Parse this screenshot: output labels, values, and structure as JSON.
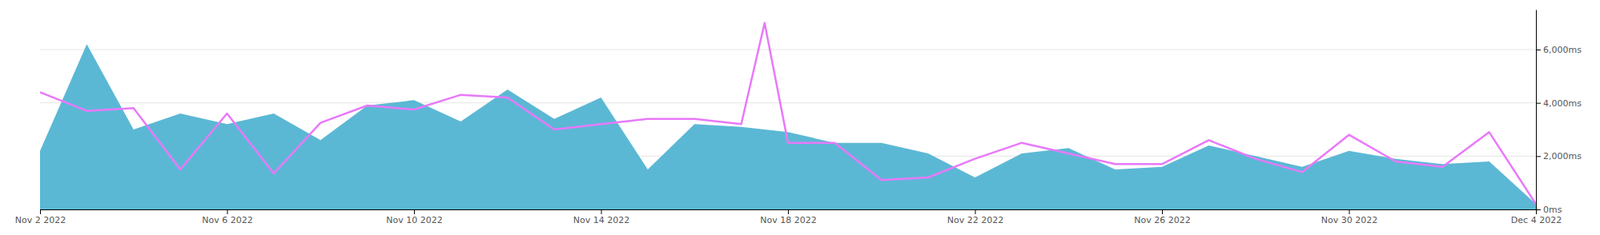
{
  "chart_data": {
    "type": "line",
    "xlim": [
      0,
      32
    ],
    "xticks": [
      {
        "value": 0,
        "label": "Nov 2 2022"
      },
      {
        "value": 4,
        "label": "Nov 6 2022"
      },
      {
        "value": 8,
        "label": "Nov 10 2022"
      },
      {
        "value": 12,
        "label": "Nov 14 2022"
      },
      {
        "value": 16,
        "label": "Nov 18 2022"
      },
      {
        "value": 20,
        "label": "Nov 22 2022"
      },
      {
        "value": 24,
        "label": "Nov 26 2022"
      },
      {
        "value": 28,
        "label": "Nov 30 2022"
      },
      {
        "value": 32,
        "label": "Dec 4 2022"
      }
    ],
    "ylim": [
      0,
      7500
    ],
    "yticks": [
      {
        "value": 0,
        "label": "0ms"
      },
      {
        "value": 2000,
        "label": "2,000ms"
      },
      {
        "value": 4000,
        "label": "4,000ms"
      },
      {
        "value": 6000,
        "label": "6,000ms"
      }
    ],
    "grid": "y",
    "series": [
      {
        "type": "area",
        "color": "#5bb8d4",
        "x": [
          0,
          1,
          2,
          3,
          4,
          5,
          6,
          7,
          8,
          9,
          10,
          11,
          12,
          13,
          14,
          15,
          16,
          17,
          18,
          19,
          20,
          21,
          22,
          23,
          24,
          25,
          26,
          27,
          28,
          29,
          30,
          31,
          32
        ],
        "values": [
          2200,
          6200,
          3000,
          3600,
          3200,
          3600,
          2600,
          3900,
          4100,
          3300,
          4500,
          3400,
          4200,
          1500,
          3200,
          3100,
          2900,
          2500,
          2500,
          2100,
          1200,
          2100,
          2300,
          1500,
          1600,
          2400,
          2000,
          1600,
          2200,
          1900,
          1700,
          1800,
          200
        ]
      },
      {
        "type": "line",
        "color": "#e879f9",
        "x": [
          0,
          1,
          2,
          3,
          4,
          5,
          6,
          7,
          8,
          9,
          10,
          11,
          12,
          13,
          14,
          15,
          15.5,
          16,
          17,
          18,
          19,
          20,
          21,
          22,
          23,
          24,
          25,
          26,
          27,
          28,
          29,
          30,
          31,
          32
        ],
        "values": [
          4400,
          3700,
          3800,
          1500,
          3600,
          1350,
          3250,
          3900,
          3750,
          4300,
          4200,
          3000,
          3200,
          3400,
          3400,
          3200,
          7000,
          2500,
          2500,
          1100,
          1200,
          1900,
          2500,
          2100,
          1700,
          1700,
          2600,
          1900,
          1400,
          2800,
          1800,
          1600,
          2900,
          200
        ]
      }
    ]
  }
}
